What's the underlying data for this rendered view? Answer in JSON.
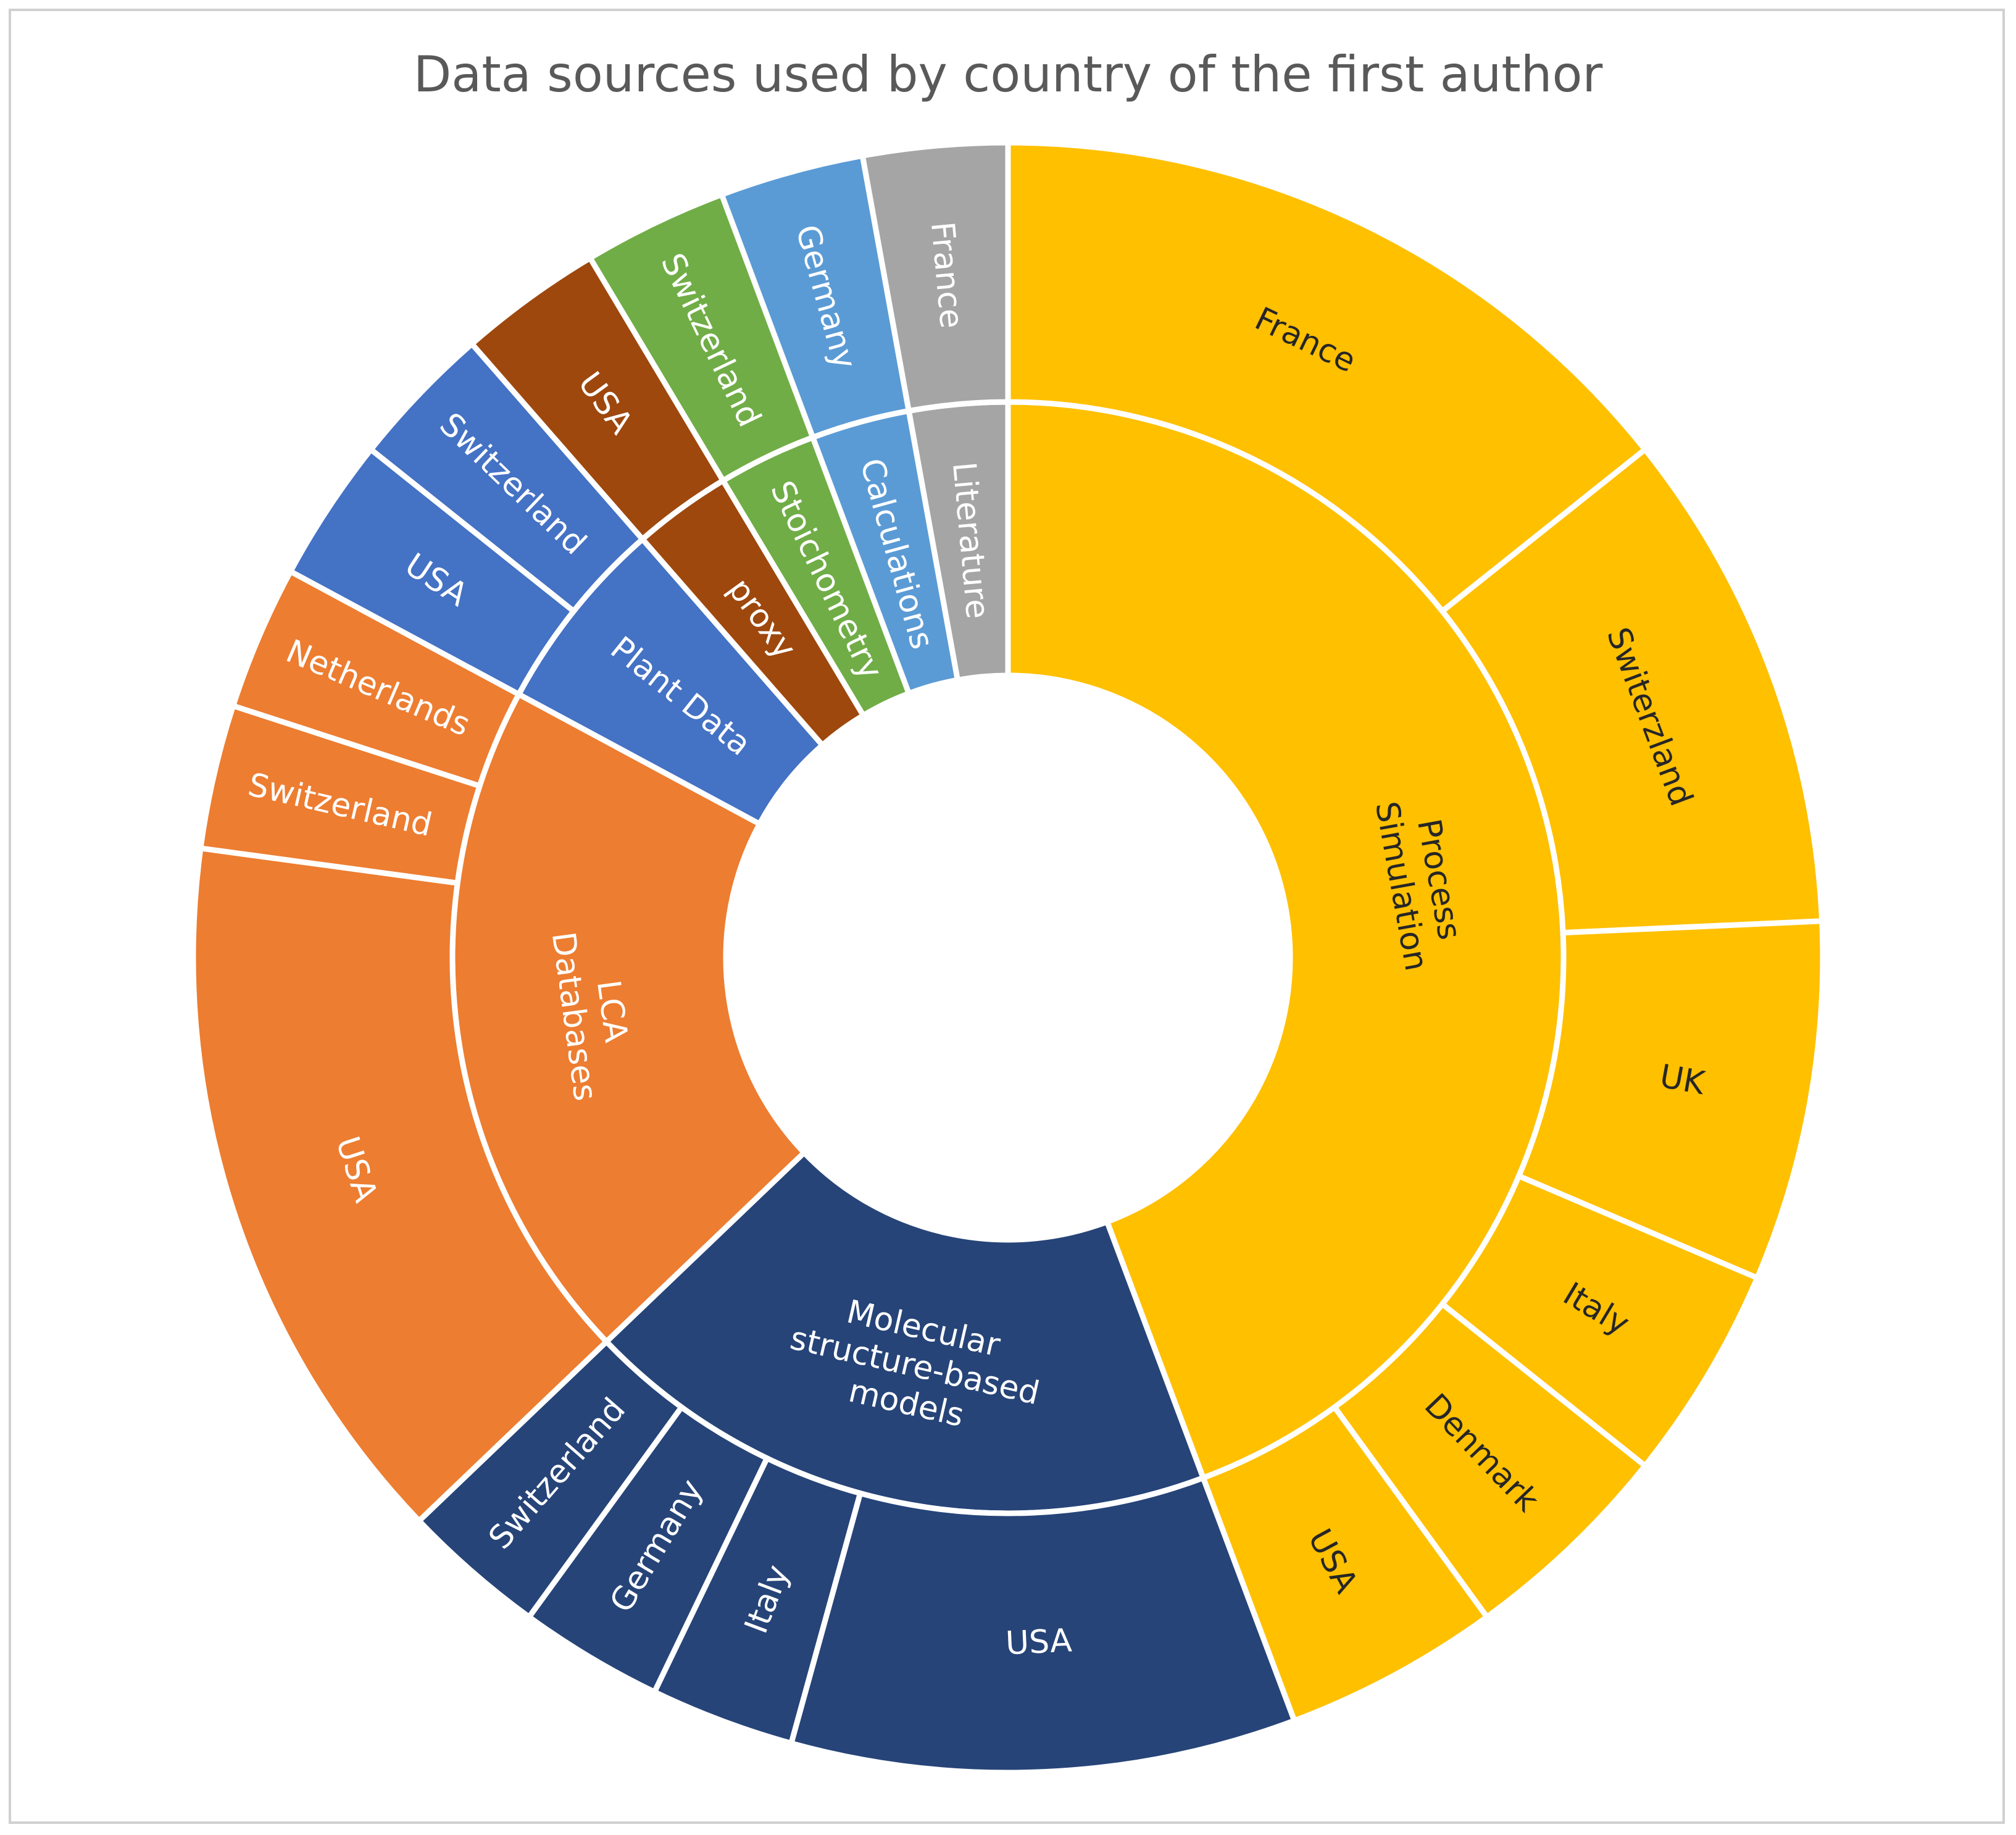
{
  "chart_data": {
    "type": "sunburst",
    "title": "Data sources used by country of the first author",
    "categories": [
      {
        "name": "Process Simulation",
        "color": "#FFC000",
        "label_color": "#262626",
        "children": [
          {
            "name": "France",
            "value": 10
          },
          {
            "name": "Switerzland",
            "value": 7
          },
          {
            "name": "UK",
            "value": 5
          },
          {
            "name": "Italy",
            "value": 3
          },
          {
            "name": "Denmark",
            "value": 3
          },
          {
            "name": "USA",
            "value": 3
          }
        ]
      },
      {
        "name": "Molecular structure-based models",
        "color": "#264478",
        "label_color": "#ffffff",
        "children": [
          {
            "name": "USA",
            "value": 7
          },
          {
            "name": "Italy",
            "value": 2
          },
          {
            "name": "Germany",
            "value": 2
          },
          {
            "name": "Switzerland",
            "value": 2
          }
        ]
      },
      {
        "name": "LCA Databases",
        "color": "#ED7D31",
        "label_color": "#ffffff",
        "children": [
          {
            "name": "USA",
            "value": 10
          },
          {
            "name": "Switzerland",
            "value": 2
          },
          {
            "name": "Netherlands",
            "value": 2
          }
        ]
      },
      {
        "name": "Plant Data",
        "color": "#4472C4",
        "label_color": "#ffffff",
        "children": [
          {
            "name": "USA",
            "value": 2
          },
          {
            "name": "Switzerland",
            "value": 2
          }
        ]
      },
      {
        "name": "proxy",
        "color": "#9E480E",
        "label_color": "#ffffff",
        "children": [
          {
            "name": "USA",
            "value": 2
          }
        ]
      },
      {
        "name": "Stoichometry",
        "color": "#70AD47",
        "label_color": "#ffffff",
        "children": [
          {
            "name": "Switzerland",
            "value": 2
          }
        ]
      },
      {
        "name": "Calculations",
        "color": "#5B9BD5",
        "label_color": "#ffffff",
        "children": [
          {
            "name": "Germany",
            "value": 2
          }
        ]
      },
      {
        "name": "Literature",
        "color": "#A5A5A5",
        "label_color": "#ffffff",
        "children": [
          {
            "name": "France",
            "value": 2
          }
        ]
      }
    ]
  }
}
